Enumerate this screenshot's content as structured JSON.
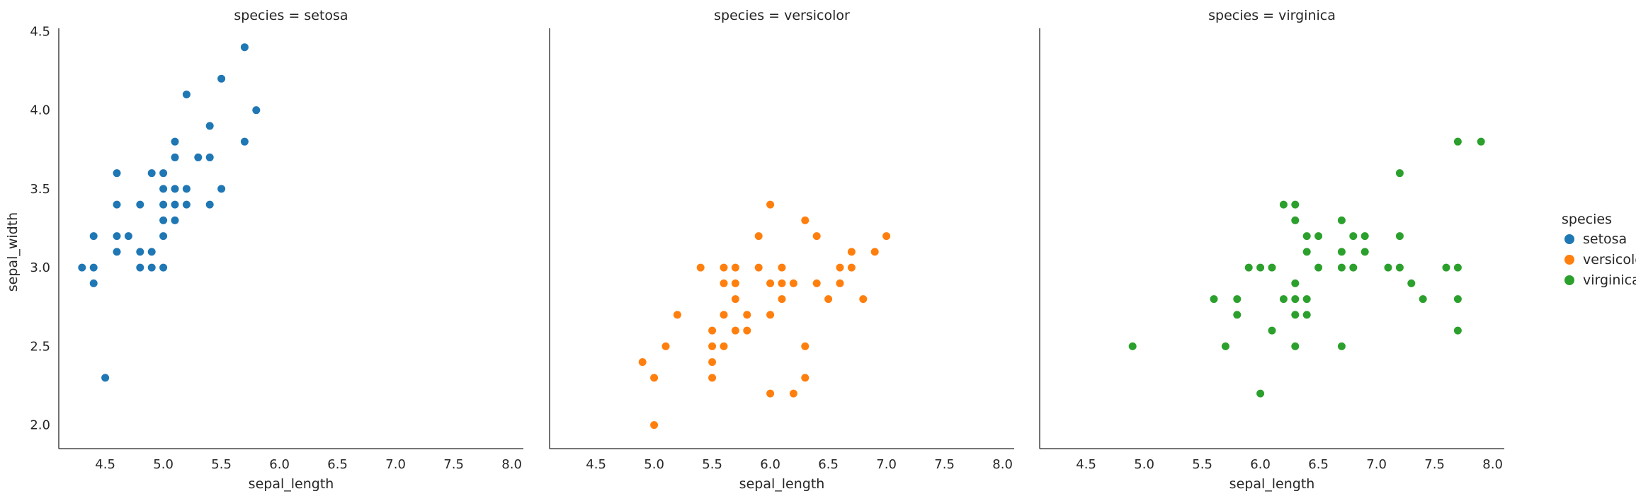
{
  "chart_data": {
    "type": "scatter",
    "x_ticks": [
      4.5,
      5.0,
      5.5,
      6.0,
      6.5,
      7.0,
      7.5,
      8.0
    ],
    "y_ticks": [
      2.0,
      2.5,
      3.0,
      3.5,
      4.0,
      4.5
    ],
    "xlim": [
      4.1,
      8.1
    ],
    "ylim": [
      1.85,
      4.52
    ],
    "xlabel": "sepal_length",
    "ylabel": "sepal_width",
    "grid": false,
    "legend": {
      "title": "species",
      "placement": "right",
      "entries": [
        {
          "label": "setosa",
          "color": "#1f77b4"
        },
        {
          "label": "versicolor",
          "color": "#ff7f0e"
        },
        {
          "label": "virginica",
          "color": "#2ca02c"
        }
      ]
    },
    "panels": [
      {
        "title": "species = setosa",
        "color": "#1f77b4",
        "points": [
          [
            4.3,
            3.0
          ],
          [
            4.4,
            3.0
          ],
          [
            4.4,
            2.9
          ],
          [
            4.4,
            3.2
          ],
          [
            4.5,
            2.3
          ],
          [
            4.6,
            3.1
          ],
          [
            4.6,
            3.2
          ],
          [
            4.6,
            3.4
          ],
          [
            4.6,
            3.6
          ],
          [
            4.7,
            3.2
          ],
          [
            4.8,
            3.0
          ],
          [
            4.8,
            3.1
          ],
          [
            4.8,
            3.4
          ],
          [
            4.9,
            3.0
          ],
          [
            4.9,
            3.1
          ],
          [
            4.9,
            3.6
          ],
          [
            5.0,
            3.0
          ],
          [
            5.0,
            3.2
          ],
          [
            5.0,
            3.3
          ],
          [
            5.0,
            3.4
          ],
          [
            5.0,
            3.5
          ],
          [
            5.0,
            3.6
          ],
          [
            5.1,
            3.3
          ],
          [
            5.1,
            3.4
          ],
          [
            5.1,
            3.5
          ],
          [
            5.1,
            3.7
          ],
          [
            5.1,
            3.8
          ],
          [
            5.2,
            3.4
          ],
          [
            5.2,
            3.5
          ],
          [
            5.2,
            4.1
          ],
          [
            5.3,
            3.7
          ],
          [
            5.4,
            3.4
          ],
          [
            5.4,
            3.7
          ],
          [
            5.4,
            3.9
          ],
          [
            5.5,
            3.5
          ],
          [
            5.5,
            4.2
          ],
          [
            5.7,
            3.8
          ],
          [
            5.7,
            4.4
          ],
          [
            5.8,
            4.0
          ]
        ]
      },
      {
        "title": "species = versicolor",
        "color": "#ff7f0e",
        "points": [
          [
            4.9,
            2.4
          ],
          [
            5.0,
            2.0
          ],
          [
            5.0,
            2.3
          ],
          [
            5.1,
            2.5
          ],
          [
            5.2,
            2.7
          ],
          [
            5.4,
            3.0
          ],
          [
            5.5,
            2.3
          ],
          [
            5.5,
            2.4
          ],
          [
            5.5,
            2.5
          ],
          [
            5.5,
            2.6
          ],
          [
            5.6,
            2.5
          ],
          [
            5.6,
            2.7
          ],
          [
            5.6,
            2.9
          ],
          [
            5.6,
            3.0
          ],
          [
            5.7,
            2.6
          ],
          [
            5.7,
            2.8
          ],
          [
            5.7,
            2.9
          ],
          [
            5.7,
            3.0
          ],
          [
            5.8,
            2.6
          ],
          [
            5.8,
            2.7
          ],
          [
            5.9,
            3.0
          ],
          [
            5.9,
            3.2
          ],
          [
            6.0,
            2.2
          ],
          [
            6.0,
            2.7
          ],
          [
            6.0,
            2.9
          ],
          [
            6.0,
            3.4
          ],
          [
            6.1,
            2.8
          ],
          [
            6.1,
            2.9
          ],
          [
            6.1,
            3.0
          ],
          [
            6.2,
            2.2
          ],
          [
            6.2,
            2.9
          ],
          [
            6.3,
            2.3
          ],
          [
            6.3,
            2.5
          ],
          [
            6.3,
            3.3
          ],
          [
            6.4,
            2.9
          ],
          [
            6.4,
            3.2
          ],
          [
            6.5,
            2.8
          ],
          [
            6.6,
            2.9
          ],
          [
            6.6,
            3.0
          ],
          [
            6.7,
            3.0
          ],
          [
            6.7,
            3.1
          ],
          [
            6.8,
            2.8
          ],
          [
            6.9,
            3.1
          ],
          [
            7.0,
            3.2
          ]
        ]
      },
      {
        "title": "species = virginica",
        "color": "#2ca02c",
        "points": [
          [
            4.9,
            2.5
          ],
          [
            5.6,
            2.8
          ],
          [
            5.7,
            2.5
          ],
          [
            5.8,
            2.7
          ],
          [
            5.8,
            2.8
          ],
          [
            5.9,
            3.0
          ],
          [
            6.0,
            2.2
          ],
          [
            6.0,
            3.0
          ],
          [
            6.1,
            2.6
          ],
          [
            6.1,
            3.0
          ],
          [
            6.2,
            2.8
          ],
          [
            6.2,
            3.4
          ],
          [
            6.3,
            2.5
          ],
          [
            6.3,
            2.7
          ],
          [
            6.3,
            2.8
          ],
          [
            6.3,
            2.9
          ],
          [
            6.3,
            3.3
          ],
          [
            6.3,
            3.4
          ],
          [
            6.4,
            2.7
          ],
          [
            6.4,
            2.8
          ],
          [
            6.4,
            3.1
          ],
          [
            6.4,
            3.2
          ],
          [
            6.5,
            3.0
          ],
          [
            6.5,
            3.2
          ],
          [
            6.7,
            2.5
          ],
          [
            6.7,
            3.0
          ],
          [
            6.7,
            3.1
          ],
          [
            6.7,
            3.3
          ],
          [
            6.8,
            3.0
          ],
          [
            6.8,
            3.2
          ],
          [
            6.9,
            3.1
          ],
          [
            6.9,
            3.2
          ],
          [
            7.1,
            3.0
          ],
          [
            7.2,
            3.0
          ],
          [
            7.2,
            3.2
          ],
          [
            7.2,
            3.6
          ],
          [
            7.3,
            2.9
          ],
          [
            7.4,
            2.8
          ],
          [
            7.6,
            3.0
          ],
          [
            7.7,
            2.6
          ],
          [
            7.7,
            2.8
          ],
          [
            7.7,
            3.0
          ],
          [
            7.7,
            3.8
          ],
          [
            7.9,
            3.8
          ]
        ]
      }
    ]
  }
}
